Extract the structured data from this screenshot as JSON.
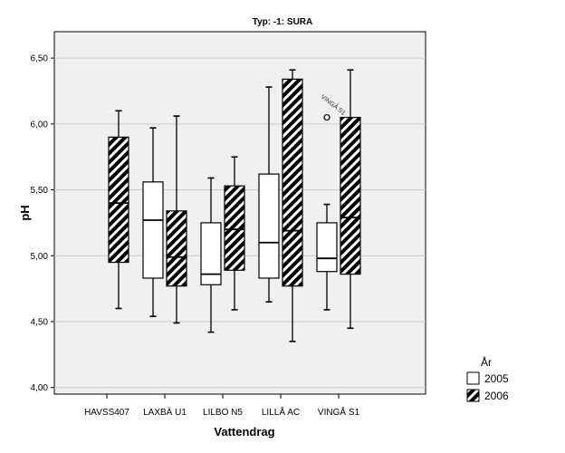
{
  "chart_data": {
    "type": "boxplot",
    "title": "Typ: -1: SURA",
    "xlabel": "Vattendrag",
    "ylabel": "pH",
    "ylim": [
      3.95,
      6.7
    ],
    "yticks": [
      4.0,
      4.5,
      5.0,
      5.5,
      6.0,
      6.5
    ],
    "ytick_labels": [
      "4,00",
      "4,50",
      "5,00",
      "5,50",
      "6,00",
      "6,50"
    ],
    "categories": [
      "HAVSS407",
      "LAXBÄ U1",
      "LILBO N5",
      "LILLÅ AC",
      "VINGÅ S1"
    ],
    "legend_title": "År",
    "series": [
      {
        "name": "2005",
        "pattern": "white",
        "boxes": [
          null,
          {
            "min": 4.54,
            "q1": 4.83,
            "median": 5.27,
            "q3": 5.56,
            "max": 5.97
          },
          {
            "min": 4.42,
            "q1": 4.78,
            "median": 4.86,
            "q3": 5.25,
            "max": 5.59
          },
          {
            "min": 4.65,
            "q1": 4.83,
            "median": 5.1,
            "q3": 5.62,
            "max": 6.28
          },
          {
            "min": 4.59,
            "q1": 4.88,
            "median": 4.98,
            "q3": 5.25,
            "max": 5.39
          }
        ],
        "outliers": [
          {
            "category_index": 4,
            "value": 6.05,
            "label": "VINGÅ S1"
          }
        ]
      },
      {
        "name": "2006",
        "pattern": "hatched",
        "boxes": [
          {
            "min": 4.6,
            "q1": 4.95,
            "median": 5.4,
            "q3": 5.9,
            "max": 6.1
          },
          {
            "min": 4.49,
            "q1": 4.77,
            "median": 4.99,
            "q3": 5.34,
            "max": 6.06
          },
          {
            "min": 4.59,
            "q1": 4.89,
            "median": 5.2,
            "q3": 5.53,
            "max": 5.75
          },
          {
            "min": 4.35,
            "q1": 4.77,
            "median": 5.19,
            "q3": 6.34,
            "max": 6.41
          },
          {
            "min": 4.45,
            "q1": 4.86,
            "median": 5.29,
            "q3": 6.05,
            "max": 6.41
          }
        ],
        "outliers": []
      }
    ]
  }
}
